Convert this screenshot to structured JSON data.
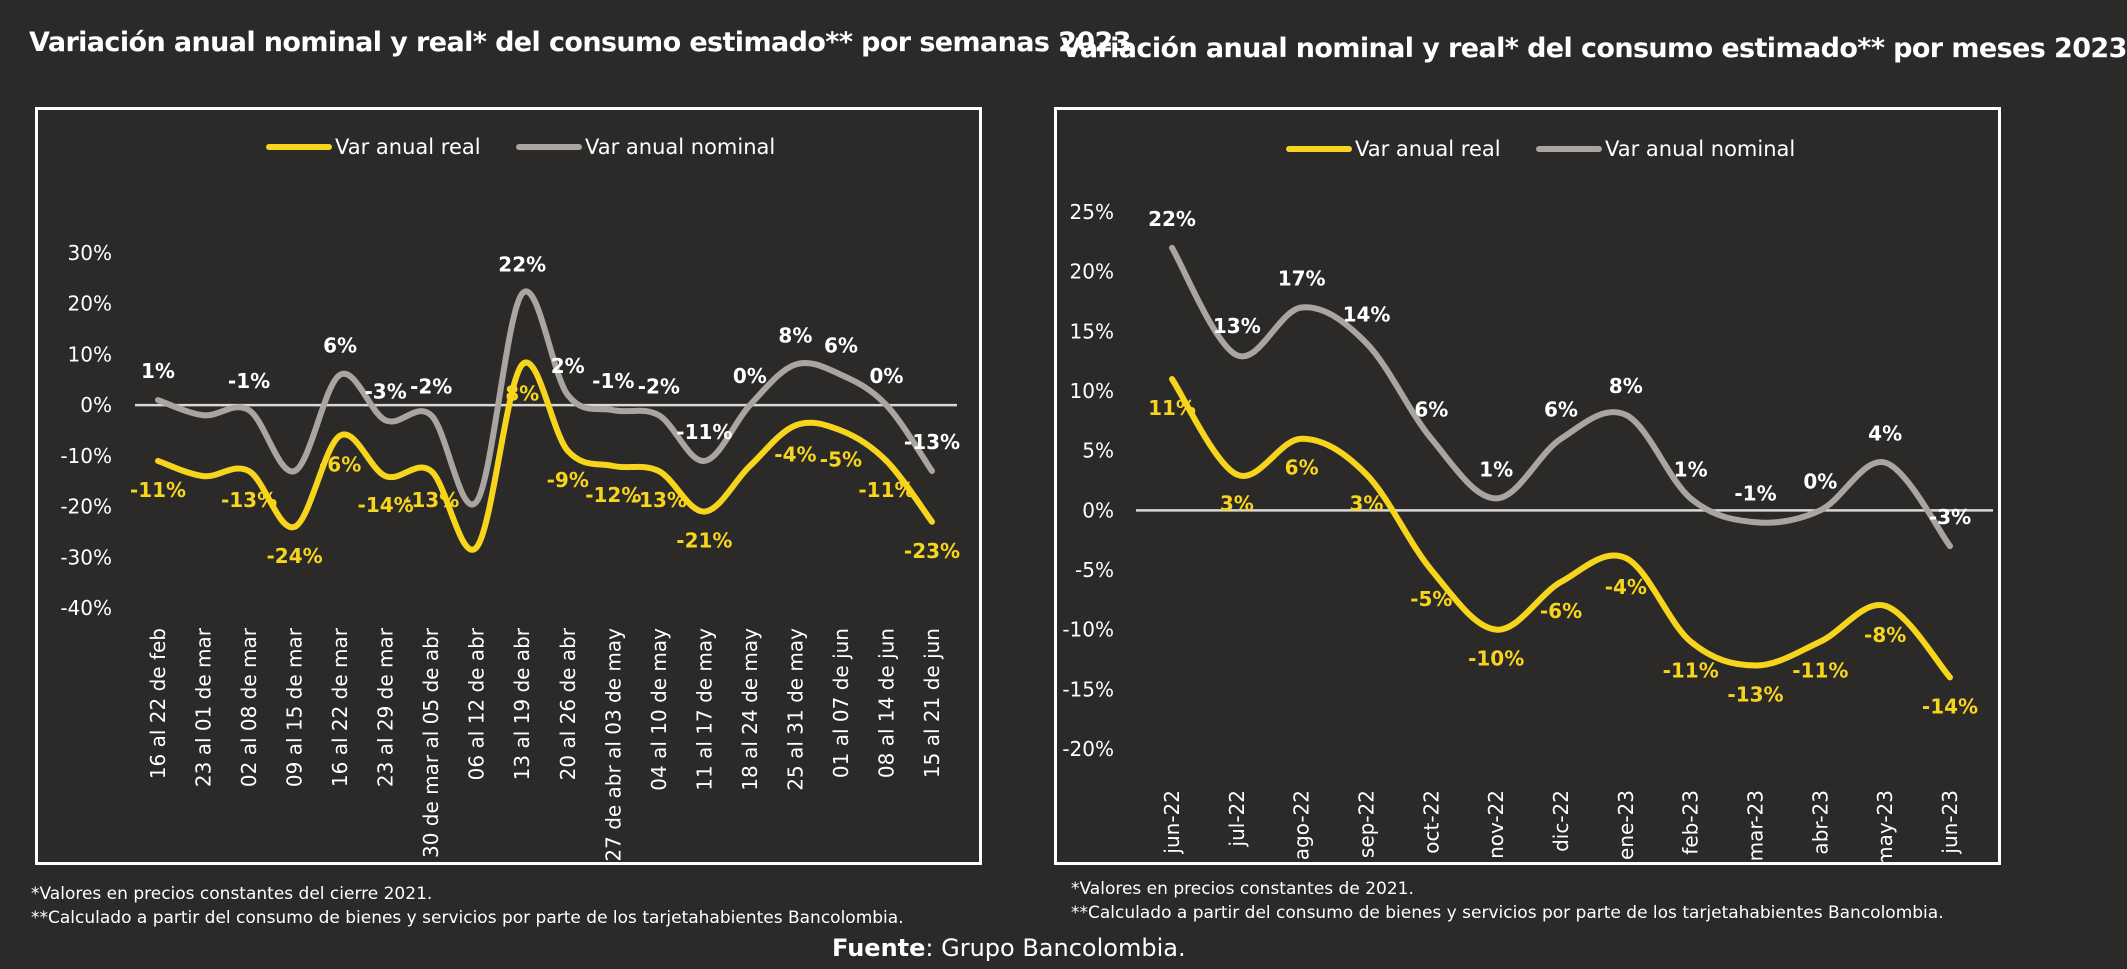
{
  "colors": {
    "background": "#2b2a28",
    "real": "#f7d51d",
    "nominal": "#a9a5a1",
    "zero_line": "#d9d9d9",
    "frame": "#ffffff"
  },
  "chart_data": [
    {
      "type": "line",
      "title": "Variación anual nominal y real* del consumo estimado** por semanas 2023",
      "legend_position": "top",
      "ylim": [
        -40,
        30
      ],
      "yticks": [
        30,
        20,
        10,
        0,
        -10,
        -20,
        -30,
        -40
      ],
      "ytick_labels": [
        "30%",
        "20%",
        "10%",
        "0%",
        "-10%",
        "-20%",
        "-30%",
        "-40%"
      ],
      "grid": false,
      "categories": [
        "16 al 22 de feb",
        "23 al 01 de mar",
        "02 al 08 de mar",
        "09 al 15 de mar",
        "16 al 22 de mar",
        "23 al 29 de mar",
        "30 de mar al 05 de abr",
        "06 al 12 de abr",
        "13 al 19 de abr",
        "20 al 26 de abr",
        "27 de abr al 03 de may",
        "04 al 10 de may",
        "11 al 17 de may",
        "18 al 24 de may",
        "25 al 31 de may",
        "01 al 07 de jun",
        "08 al 14 de jun",
        "15 al 21 de jun"
      ],
      "series": [
        {
          "name": "Var anual real",
          "color": "#f7d51d",
          "values": [
            -11,
            -14,
            -13,
            -24,
            -6,
            -14,
            -13,
            -28,
            8,
            -9,
            -12,
            -13,
            -21,
            -12,
            -4,
            -5,
            -11,
            -23
          ],
          "labels": [
            "-11%",
            null,
            "-13%",
            "-24%",
            "-6%",
            "-14%",
            "-13%",
            null,
            "8%",
            "-9%",
            "-12%",
            "-13%",
            "-21%",
            null,
            "-4%",
            "-5%",
            "-11%",
            "-23%"
          ]
        },
        {
          "name": "Var anual nominal",
          "color": "#a9a5a1",
          "values": [
            1,
            -2,
            -1,
            -13,
            6,
            -3,
            -2,
            -19,
            22,
            2,
            -1,
            -2,
            -11,
            0,
            8,
            6,
            0,
            -13
          ],
          "labels": [
            "1%",
            null,
            "-1%",
            null,
            "6%",
            "-3%",
            "-2%",
            null,
            "22%",
            "2%",
            "-1%",
            "-2%",
            "-11%",
            "0%",
            "8%",
            "6%",
            "0%",
            "-13%"
          ]
        }
      ],
      "footnotes": [
        "*Valores en precios constantes del cierre 2021.",
        "**Calculado a partir del consumo de bienes y servicios por parte de los tarjetahabientes Bancolombia."
      ]
    },
    {
      "type": "line",
      "title": "Variación anual nominal y real* del consumo estimado** por meses 2023",
      "legend_position": "top",
      "ylim": [
        -20,
        25
      ],
      "yticks": [
        25,
        20,
        15,
        10,
        5,
        0,
        -5,
        -10,
        -15,
        -20
      ],
      "ytick_labels": [
        "25%",
        "20%",
        "15%",
        "10%",
        "5%",
        "0%",
        "-5%",
        "-10%",
        "-15%",
        "-20%"
      ],
      "grid": false,
      "categories": [
        "jun-22",
        "jul-22",
        "ago-22",
        "sep-22",
        "oct-22",
        "nov-22",
        "dic-22",
        "ene-23",
        "feb-23",
        "mar-23",
        "abr-23",
        "may-23",
        "jun-23"
      ],
      "series": [
        {
          "name": "Var anual real",
          "color": "#f7d51d",
          "values": [
            11,
            3,
            6,
            3,
            -5,
            -10,
            -6,
            -4,
            -11,
            -13,
            -11,
            -8,
            -14
          ],
          "labels": [
            "11%",
            "3%",
            "6%",
            "3%",
            "-5%",
            "-10%",
            "-6%",
            "-4%",
            "-11%",
            "-13%",
            "-11%",
            "-8%",
            "-14%"
          ]
        },
        {
          "name": "Var anual nominal",
          "color": "#a9a5a1",
          "values": [
            22,
            13,
            17,
            14,
            6,
            1,
            6,
            8,
            1,
            -1,
            0,
            4,
            -3
          ],
          "labels": [
            "22%",
            "13%",
            "17%",
            "14%",
            "6%",
            "1%",
            "6%",
            "8%",
            "1%",
            "-1%",
            "0%",
            "4%",
            "-3%"
          ]
        }
      ],
      "footnotes": [
        "*Valores en precios constantes de 2021.",
        "**Calculado a partir del consumo de bienes y servicios por parte de los tarjetahabientes Bancolombia."
      ]
    }
  ],
  "source": {
    "label": "Fuente",
    "text": ": Grupo Bancolombia."
  }
}
